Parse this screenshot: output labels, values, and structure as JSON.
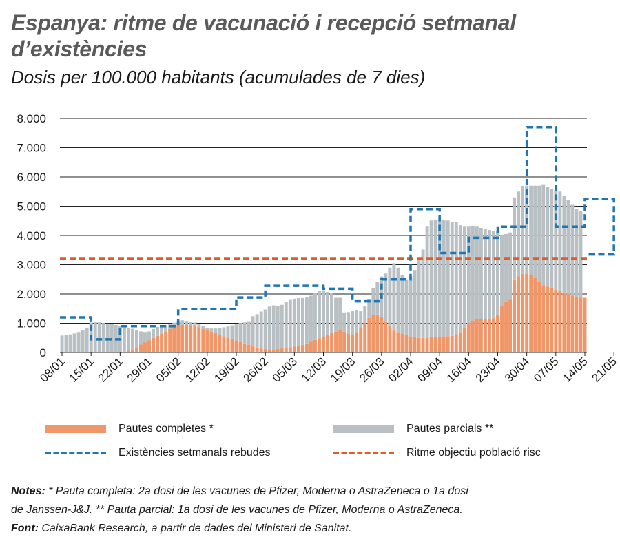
{
  "title": "Espanya: ritme de vacunació i recepció setmanal d’existències",
  "subtitle": "Dosis per 100.000 habitants (acumulades de 7 dies)",
  "colors": {
    "completes": "#f0976a",
    "parcials": "#b9c0c4",
    "existencies": "#1f76b4",
    "objectiu": "#e05b26"
  },
  "chart_data": {
    "type": "bar",
    "stacked": true,
    "ylim": [
      0,
      8000
    ],
    "yticks": [
      0,
      1000,
      2000,
      3000,
      4000,
      5000,
      6000,
      7000,
      8000
    ],
    "ytick_labels": [
      "0",
      "1.000",
      "2.000",
      "3.000",
      "4.000",
      "5.000",
      "6.000",
      "7.000",
      "8.000"
    ],
    "x_tick_labels": [
      "08/01",
      "15/01",
      "22/01",
      "29/01",
      "05/02",
      "12/02",
      "19/02",
      "26/02",
      "05/03",
      "12/03",
      "19/03",
      "26/03",
      "02/04",
      "09/04",
      "16/04",
      "23/04",
      "30/04",
      "07/05",
      "14/05",
      "21/05"
    ],
    "series": [
      {
        "name": "Pautes completes *",
        "kind": "bar",
        "values": [
          0,
          0,
          0,
          0,
          0,
          0,
          0,
          0,
          0,
          0,
          0,
          0,
          0,
          0,
          0,
          30,
          60,
          110,
          180,
          270,
          350,
          420,
          500,
          570,
          650,
          720,
          800,
          870,
          920,
          950,
          950,
          940,
          910,
          860,
          810,
          760,
          710,
          660,
          610,
          560,
          510,
          460,
          410,
          360,
          310,
          260,
          210,
          170,
          140,
          120,
          110,
          110,
          120,
          140,
          160,
          180,
          200,
          230,
          260,
          310,
          370,
          430,
          490,
          550,
          610,
          660,
          710,
          760,
          710,
          650,
          600,
          700,
          860,
          1020,
          1180,
          1290,
          1300,
          1200,
          1050,
          900,
          750,
          700,
          650,
          600,
          550,
          520,
          500,
          500,
          510,
          520,
          530,
          540,
          550,
          560,
          570,
          600,
          700,
          850,
          1000,
          1100,
          1130,
          1140,
          1150,
          1160,
          1170,
          1300,
          1600,
          1750,
          1800,
          2500,
          2600,
          2700,
          2700,
          2650,
          2550,
          2400,
          2300,
          2250,
          2200,
          2150,
          2100,
          2050,
          2000,
          1950,
          1900,
          1880,
          1870
        ]
      },
      {
        "name": "Pautes parcials **",
        "kind": "bar",
        "values": [
          580,
          600,
          620,
          650,
          700,
          760,
          850,
          1020,
          1050,
          1030,
          1010,
          990,
          970,
          940,
          900,
          840,
          780,
          700,
          580,
          450,
          350,
          300,
          300,
          300,
          280,
          220,
          160,
          150,
          150,
          150,
          130,
          110,
          120,
          100,
          90,
          90,
          110,
          160,
          220,
          300,
          380,
          470,
          550,
          650,
          720,
          810,
          1030,
          1140,
          1260,
          1350,
          1460,
          1500,
          1480,
          1490,
          1560,
          1620,
          1640,
          1630,
          1600,
          1570,
          1570,
          1600,
          1620,
          1570,
          1460,
          1370,
          1160,
          1110,
          660,
          730,
          810,
          760,
          550,
          570,
          640,
          910,
          1100,
          1400,
          1650,
          2000,
          2300,
          2200,
          2000,
          1900,
          2050,
          2300,
          2650,
          3020,
          3790,
          3990,
          4000,
          3990,
          3990,
          3950,
          3900,
          3850,
          3650,
          3450,
          3300,
          3230,
          3170,
          3120,
          3070,
          3030,
          2990,
          2850,
          2400,
          2300,
          2300,
          2800,
          2900,
          3000,
          3000,
          3050,
          3150,
          3300,
          3450,
          3400,
          3400,
          3400,
          3400,
          3300,
          3200,
          3100,
          3000,
          2950
        ]
      },
      {
        "name": "Existències setmanals rebudes",
        "kind": "line",
        "steps": [
          {
            "from": "08/01",
            "to": "15/01",
            "value": 1200
          },
          {
            "from": "15/01",
            "to": "22/01",
            "value": 450
          },
          {
            "from": "22/01",
            "to": "05/02",
            "value": 900
          },
          {
            "from": "05/02",
            "to": "19/02",
            "value": 1480
          },
          {
            "from": "19/02",
            "to": "26/02",
            "value": 1880
          },
          {
            "from": "26/02",
            "to": "12/03",
            "value": 2280
          },
          {
            "from": "12/03",
            "to": "19/03",
            "value": 2180
          },
          {
            "from": "19/03",
            "to": "26/03",
            "value": 1750
          },
          {
            "from": "26/03",
            "to": "02/04",
            "value": 2500
          },
          {
            "from": "02/04",
            "to": "09/04",
            "value": 4900
          },
          {
            "from": "09/04",
            "to": "16/04",
            "value": 3400
          },
          {
            "from": "16/04",
            "to": "23/04",
            "value": 3920
          },
          {
            "from": "23/04",
            "to": "30/04",
            "value": 4300
          },
          {
            "from": "30/04",
            "to": "07/05",
            "value": 7700
          },
          {
            "from": "07/05",
            "to": "14/05",
            "value": 4300
          },
          {
            "from": "14/05",
            "to": "21/05",
            "value": 5250
          },
          {
            "from": "21/05",
            "to": "21/05",
            "value": 3350
          }
        ]
      },
      {
        "name": "Ritme objectiu població risc",
        "kind": "line",
        "value": 3200
      }
    ]
  },
  "legend": {
    "completes": "Pautes completes *",
    "parcials": "Pautes parcials **",
    "existencies": "Existències setmanals rebudes",
    "objectiu": "Ritme objectiu població risc"
  },
  "notes": {
    "notes_label": "Notes:",
    "notes_text_1": " * Pauta completa: 2a dosi de les vacunes de Pfizer, Moderna o AstraZeneca o 1a dosi",
    "notes_text_2": "de Janssen-J&J.  ** Pauta parcial: 1a dosi de les vacunes de Pfizer, Moderna o AstraZeneca.",
    "font_label": "Font:",
    "font_text": " CaixaBank Research, a partir de dades del Ministeri de Sanitat."
  }
}
